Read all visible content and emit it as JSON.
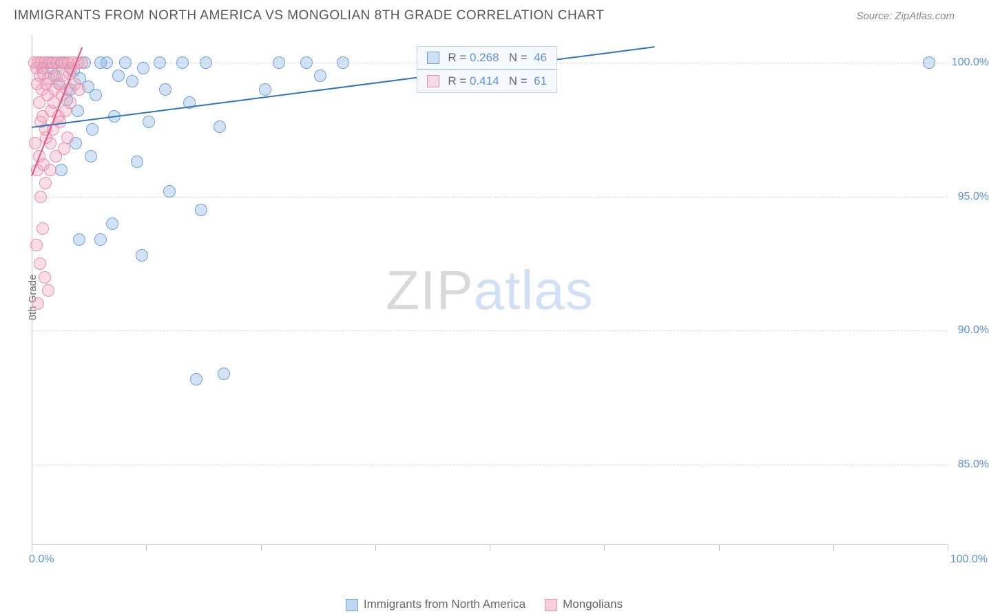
{
  "title": "IMMIGRANTS FROM NORTH AMERICA VS MONGOLIAN 8TH GRADE CORRELATION CHART",
  "source": "Source: ZipAtlas.com",
  "watermark": {
    "part1": "ZIP",
    "part2": "atlas"
  },
  "chart": {
    "type": "scatter",
    "background_color": "#ffffff",
    "grid_color": "#d8d8d8",
    "axis_color": "#bcbcbc",
    "label_color": "#5a8fd6",
    "text_color": "#666666",
    "ylabel": "8th Grade",
    "xlim": [
      0,
      100
    ],
    "ylim": [
      82,
      101
    ],
    "yticks": [
      85,
      90,
      95,
      100
    ],
    "ytick_labels": [
      "85.0%",
      "90.0%",
      "95.0%",
      "100.0%"
    ],
    "xticks": [
      0,
      12.5,
      25,
      37.5,
      50,
      62.5,
      75,
      87.5,
      100
    ],
    "xaxis_min_label": "0.0%",
    "xaxis_max_label": "100.0%",
    "marker_radius": 9,
    "marker_border_width": 1.5,
    "series": [
      {
        "name": "Immigrants from North America",
        "fill": "rgba(128,176,226,0.35)",
        "stroke": "#6aa2d8",
        "line_color": "#2f72c4",
        "r": 0.268,
        "n": 46,
        "trend": {
          "x1": 0,
          "y1": 97.6,
          "x2": 68,
          "y2": 100.6
        },
        "points": [
          [
            1.2,
            99.8
          ],
          [
            2.0,
            100.0
          ],
          [
            2.5,
            99.5
          ],
          [
            3.0,
            99.2
          ],
          [
            3.4,
            100.0
          ],
          [
            3.8,
            98.6
          ],
          [
            4.2,
            99.0
          ],
          [
            4.6,
            99.7
          ],
          [
            5.0,
            98.2
          ],
          [
            5.3,
            99.4
          ],
          [
            5.8,
            100.0
          ],
          [
            6.2,
            99.1
          ],
          [
            6.6,
            97.5
          ],
          [
            7.0,
            98.8
          ],
          [
            7.5,
            100.0
          ],
          [
            8.2,
            100.0
          ],
          [
            9.0,
            98.0
          ],
          [
            9.5,
            99.5
          ],
          [
            10.2,
            100.0
          ],
          [
            11.0,
            99.3
          ],
          [
            11.5,
            96.3
          ],
          [
            12.2,
            99.8
          ],
          [
            12.8,
            97.8
          ],
          [
            14.0,
            100.0
          ],
          [
            14.6,
            99.0
          ],
          [
            15.0,
            95.2
          ],
          [
            16.5,
            100.0
          ],
          [
            17.2,
            98.5
          ],
          [
            18.5,
            94.5
          ],
          [
            19.0,
            100.0
          ],
          [
            20.5,
            97.6
          ],
          [
            5.2,
            93.4
          ],
          [
            12.0,
            92.8
          ],
          [
            25.5,
            99.0
          ],
          [
            27.0,
            100.0
          ],
          [
            30.0,
            100.0
          ],
          [
            31.5,
            99.5
          ],
          [
            34.0,
            100.0
          ],
          [
            7.5,
            93.4
          ],
          [
            18.0,
            88.2
          ],
          [
            21.0,
            88.4
          ],
          [
            98.0,
            100.0
          ],
          [
            3.2,
            96.0
          ],
          [
            4.8,
            97.0
          ],
          [
            6.5,
            96.5
          ],
          [
            8.8,
            94.0
          ]
        ]
      },
      {
        "name": "Mongolians",
        "fill": "rgba(242,160,185,0.35)",
        "stroke": "#e68fab",
        "line_color": "#e6527e",
        "r": 0.414,
        "n": 61,
        "trend": {
          "x1": 0,
          "y1": 95.8,
          "x2": 5.5,
          "y2": 100.6
        },
        "points": [
          [
            0.3,
            100.0
          ],
          [
            0.5,
            99.8
          ],
          [
            0.6,
            99.2
          ],
          [
            0.7,
            100.0
          ],
          [
            0.8,
            98.5
          ],
          [
            0.9,
            99.5
          ],
          [
            1.0,
            100.0
          ],
          [
            1.1,
            99.0
          ],
          [
            1.2,
            98.0
          ],
          [
            1.3,
            99.6
          ],
          [
            1.4,
            100.0
          ],
          [
            1.5,
            97.5
          ],
          [
            1.6,
            99.2
          ],
          [
            1.7,
            98.8
          ],
          [
            1.8,
            100.0
          ],
          [
            1.9,
            99.4
          ],
          [
            2.0,
            97.0
          ],
          [
            2.1,
            98.2
          ],
          [
            2.2,
            99.8
          ],
          [
            2.3,
            100.0
          ],
          [
            2.4,
            98.5
          ],
          [
            2.5,
            99.0
          ],
          [
            2.6,
            96.5
          ],
          [
            2.7,
            99.5
          ],
          [
            2.8,
            100.0
          ],
          [
            2.9,
            98.0
          ],
          [
            3.0,
            99.2
          ],
          [
            3.1,
            97.8
          ],
          [
            3.2,
            100.0
          ],
          [
            3.3,
            98.8
          ],
          [
            3.4,
            99.5
          ],
          [
            3.5,
            96.8
          ],
          [
            3.6,
            100.0
          ],
          [
            3.7,
            98.2
          ],
          [
            3.8,
            99.0
          ],
          [
            3.9,
            97.2
          ],
          [
            4.0,
            100.0
          ],
          [
            4.1,
            99.6
          ],
          [
            4.2,
            98.5
          ],
          [
            4.3,
            99.8
          ],
          [
            4.5,
            100.0
          ],
          [
            4.7,
            99.2
          ],
          [
            5.0,
            100.0
          ],
          [
            5.2,
            99.0
          ],
          [
            5.5,
            100.0
          ],
          [
            0.4,
            97.0
          ],
          [
            0.6,
            96.0
          ],
          [
            0.8,
            96.5
          ],
          [
            1.0,
            95.0
          ],
          [
            1.3,
            96.2
          ],
          [
            1.5,
            95.5
          ],
          [
            0.5,
            93.2
          ],
          [
            0.9,
            92.5
          ],
          [
            1.2,
            93.8
          ],
          [
            0.7,
            91.0
          ],
          [
            1.4,
            92.0
          ],
          [
            1.8,
            91.5
          ],
          [
            1.0,
            97.8
          ],
          [
            1.6,
            97.2
          ],
          [
            2.0,
            96.0
          ],
          [
            2.3,
            97.5
          ]
        ]
      }
    ],
    "corr_box": {
      "left_pct": 42,
      "top_pct": 2
    },
    "legend": [
      {
        "label": "Immigrants from North America",
        "fill": "rgba(128,176,226,0.5)",
        "stroke": "#6aa2d8"
      },
      {
        "label": "Mongolians",
        "fill": "rgba(242,160,185,0.5)",
        "stroke": "#e68fab"
      }
    ]
  }
}
